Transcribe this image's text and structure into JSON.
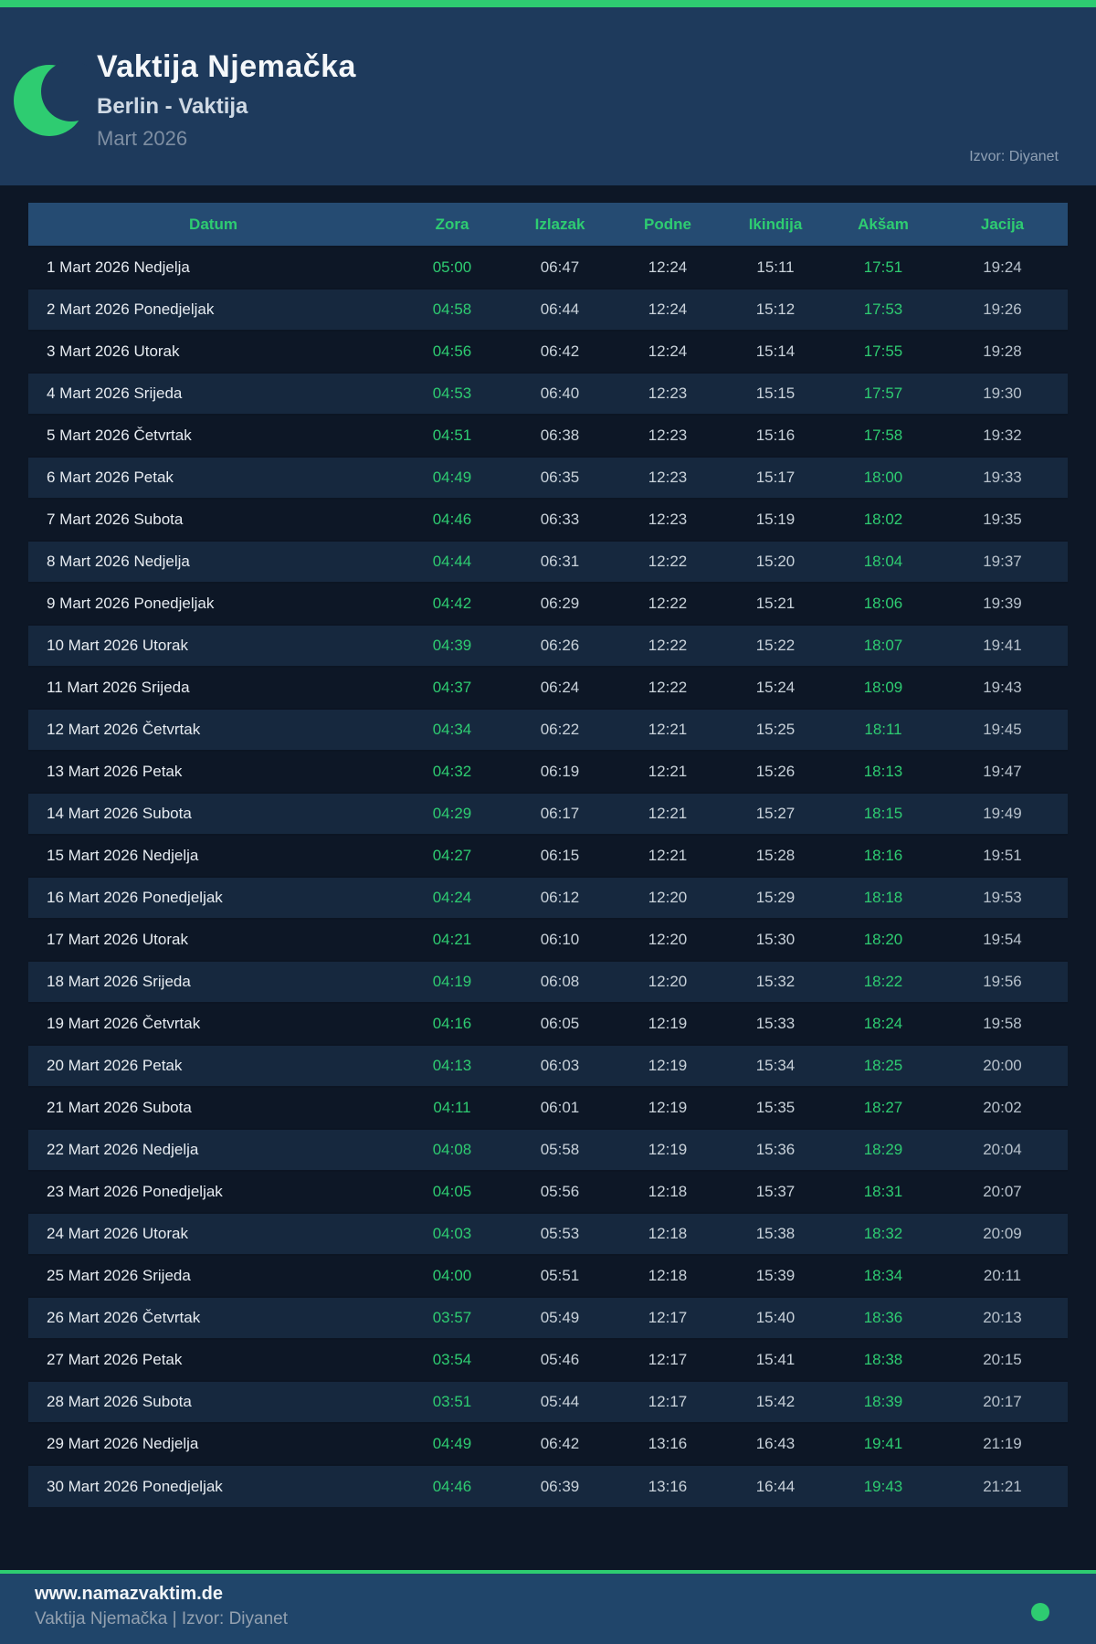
{
  "header": {
    "title": "Vaktija Njemačka",
    "subtitle": "Berlin - Vaktija",
    "month": "Mart 2026",
    "source": "Izvor: Diyanet"
  },
  "icons": {
    "logo": "crescent-moon-icon",
    "status": "green-dot-icon"
  },
  "colors": {
    "accent_green": "#2ecc71",
    "header_bg": "#1e3a5c",
    "page_bg": "#0d1726",
    "table_head_bg": "#254b72",
    "row_stripe_bg": "#16283e",
    "footer_bg": "#20456a"
  },
  "table": {
    "columns": [
      "Datum",
      "Zora",
      "Izlazak",
      "Podne",
      "Ikindija",
      "Akšam",
      "Jacija"
    ],
    "column_keys": [
      "datum",
      "zora",
      "izlazak",
      "podne",
      "ikindija",
      "aksam",
      "jacija"
    ],
    "rows": [
      {
        "datum": "1 Mart 2026 Nedjelja",
        "zora": "05:00",
        "izlazak": "06:47",
        "podne": "12:24",
        "ikindija": "15:11",
        "aksam": "17:51",
        "jacija": "19:24"
      },
      {
        "datum": "2 Mart 2026 Ponedjeljak",
        "zora": "04:58",
        "izlazak": "06:44",
        "podne": "12:24",
        "ikindija": "15:12",
        "aksam": "17:53",
        "jacija": "19:26"
      },
      {
        "datum": "3 Mart 2026 Utorak",
        "zora": "04:56",
        "izlazak": "06:42",
        "podne": "12:24",
        "ikindija": "15:14",
        "aksam": "17:55",
        "jacija": "19:28"
      },
      {
        "datum": "4 Mart 2026 Srijeda",
        "zora": "04:53",
        "izlazak": "06:40",
        "podne": "12:23",
        "ikindija": "15:15",
        "aksam": "17:57",
        "jacija": "19:30"
      },
      {
        "datum": "5 Mart 2026 Četvrtak",
        "zora": "04:51",
        "izlazak": "06:38",
        "podne": "12:23",
        "ikindija": "15:16",
        "aksam": "17:58",
        "jacija": "19:32"
      },
      {
        "datum": "6 Mart 2026 Petak",
        "zora": "04:49",
        "izlazak": "06:35",
        "podne": "12:23",
        "ikindija": "15:17",
        "aksam": "18:00",
        "jacija": "19:33"
      },
      {
        "datum": "7 Mart 2026 Subota",
        "zora": "04:46",
        "izlazak": "06:33",
        "podne": "12:23",
        "ikindija": "15:19",
        "aksam": "18:02",
        "jacija": "19:35"
      },
      {
        "datum": "8 Mart 2026 Nedjelja",
        "zora": "04:44",
        "izlazak": "06:31",
        "podne": "12:22",
        "ikindija": "15:20",
        "aksam": "18:04",
        "jacija": "19:37"
      },
      {
        "datum": "9 Mart 2026 Ponedjeljak",
        "zora": "04:42",
        "izlazak": "06:29",
        "podne": "12:22",
        "ikindija": "15:21",
        "aksam": "18:06",
        "jacija": "19:39"
      },
      {
        "datum": "10 Mart 2026 Utorak",
        "zora": "04:39",
        "izlazak": "06:26",
        "podne": "12:22",
        "ikindija": "15:22",
        "aksam": "18:07",
        "jacija": "19:41"
      },
      {
        "datum": "11 Mart 2026 Srijeda",
        "zora": "04:37",
        "izlazak": "06:24",
        "podne": "12:22",
        "ikindija": "15:24",
        "aksam": "18:09",
        "jacija": "19:43"
      },
      {
        "datum": "12 Mart 2026 Četvrtak",
        "zora": "04:34",
        "izlazak": "06:22",
        "podne": "12:21",
        "ikindija": "15:25",
        "aksam": "18:11",
        "jacija": "19:45"
      },
      {
        "datum": "13 Mart 2026 Petak",
        "zora": "04:32",
        "izlazak": "06:19",
        "podne": "12:21",
        "ikindija": "15:26",
        "aksam": "18:13",
        "jacija": "19:47"
      },
      {
        "datum": "14 Mart 2026 Subota",
        "zora": "04:29",
        "izlazak": "06:17",
        "podne": "12:21",
        "ikindija": "15:27",
        "aksam": "18:15",
        "jacija": "19:49"
      },
      {
        "datum": "15 Mart 2026 Nedjelja",
        "zora": "04:27",
        "izlazak": "06:15",
        "podne": "12:21",
        "ikindija": "15:28",
        "aksam": "18:16",
        "jacija": "19:51"
      },
      {
        "datum": "16 Mart 2026 Ponedjeljak",
        "zora": "04:24",
        "izlazak": "06:12",
        "podne": "12:20",
        "ikindija": "15:29",
        "aksam": "18:18",
        "jacija": "19:53"
      },
      {
        "datum": "17 Mart 2026 Utorak",
        "zora": "04:21",
        "izlazak": "06:10",
        "podne": "12:20",
        "ikindija": "15:30",
        "aksam": "18:20",
        "jacija": "19:54"
      },
      {
        "datum": "18 Mart 2026 Srijeda",
        "zora": "04:19",
        "izlazak": "06:08",
        "podne": "12:20",
        "ikindija": "15:32",
        "aksam": "18:22",
        "jacija": "19:56"
      },
      {
        "datum": "19 Mart 2026 Četvrtak",
        "zora": "04:16",
        "izlazak": "06:05",
        "podne": "12:19",
        "ikindija": "15:33",
        "aksam": "18:24",
        "jacija": "19:58"
      },
      {
        "datum": "20 Mart 2026 Petak",
        "zora": "04:13",
        "izlazak": "06:03",
        "podne": "12:19",
        "ikindija": "15:34",
        "aksam": "18:25",
        "jacija": "20:00"
      },
      {
        "datum": "21 Mart 2026 Subota",
        "zora": "04:11",
        "izlazak": "06:01",
        "podne": "12:19",
        "ikindija": "15:35",
        "aksam": "18:27",
        "jacija": "20:02"
      },
      {
        "datum": "22 Mart 2026 Nedjelja",
        "zora": "04:08",
        "izlazak": "05:58",
        "podne": "12:19",
        "ikindija": "15:36",
        "aksam": "18:29",
        "jacija": "20:04"
      },
      {
        "datum": "23 Mart 2026 Ponedjeljak",
        "zora": "04:05",
        "izlazak": "05:56",
        "podne": "12:18",
        "ikindija": "15:37",
        "aksam": "18:31",
        "jacija": "20:07"
      },
      {
        "datum": "24 Mart 2026 Utorak",
        "zora": "04:03",
        "izlazak": "05:53",
        "podne": "12:18",
        "ikindija": "15:38",
        "aksam": "18:32",
        "jacija": "20:09"
      },
      {
        "datum": "25 Mart 2026 Srijeda",
        "zora": "04:00",
        "izlazak": "05:51",
        "podne": "12:18",
        "ikindija": "15:39",
        "aksam": "18:34",
        "jacija": "20:11"
      },
      {
        "datum": "26 Mart 2026 Četvrtak",
        "zora": "03:57",
        "izlazak": "05:49",
        "podne": "12:17",
        "ikindija": "15:40",
        "aksam": "18:36",
        "jacija": "20:13"
      },
      {
        "datum": "27 Mart 2026 Petak",
        "zora": "03:54",
        "izlazak": "05:46",
        "podne": "12:17",
        "ikindija": "15:41",
        "aksam": "18:38",
        "jacija": "20:15"
      },
      {
        "datum": "28 Mart 2026 Subota",
        "zora": "03:51",
        "izlazak": "05:44",
        "podne": "12:17",
        "ikindija": "15:42",
        "aksam": "18:39",
        "jacija": "20:17"
      },
      {
        "datum": "29 Mart 2026 Nedjelja",
        "zora": "04:49",
        "izlazak": "06:42",
        "podne": "13:16",
        "ikindija": "16:43",
        "aksam": "19:41",
        "jacija": "21:19"
      },
      {
        "datum": "30 Mart 2026 Ponedjeljak",
        "zora": "04:46",
        "izlazak": "06:39",
        "podne": "13:16",
        "ikindija": "16:44",
        "aksam": "19:43",
        "jacija": "21:21"
      }
    ]
  },
  "footer": {
    "url": "www.namazvaktim.de",
    "credit": "Vaktija Njemačka | Izvor: Diyanet"
  }
}
